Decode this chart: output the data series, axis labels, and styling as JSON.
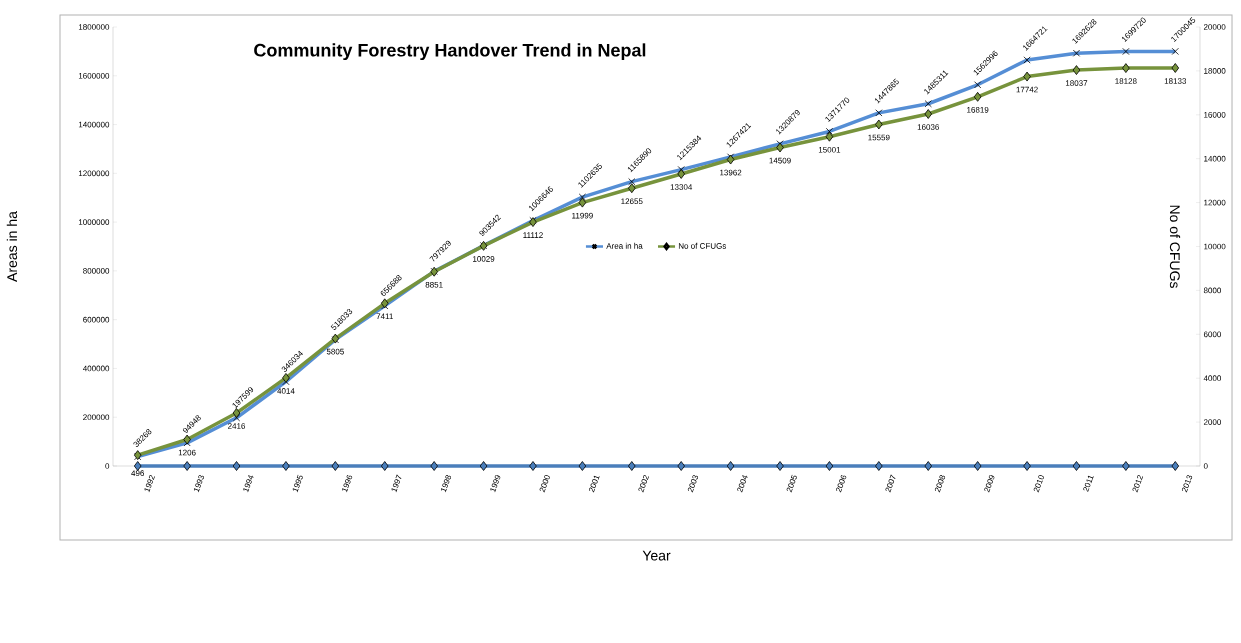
{
  "chart_data": {
    "type": "line",
    "title": "Community Forestry Handover Trend in Nepal",
    "xlabel": "Year",
    "ylabel": "Areas in ha",
    "y2label": "No of CFUGs",
    "categories": [
      "1992",
      "1993",
      "1994",
      "1995",
      "1996",
      "1997",
      "1998",
      "1999",
      "2000",
      "2001",
      "2002",
      "2003",
      "2004",
      "2005",
      "2006",
      "2007",
      "2008",
      "2009",
      "2010",
      "2011",
      "2012",
      "2013"
    ],
    "series": [
      {
        "name": "Area in ha",
        "color": "#558ed5",
        "marker": "cross",
        "axis": "y",
        "values": [
          38268,
          94948,
          197599,
          346034,
          518033,
          656688,
          797929,
          903542,
          1006646,
          1102635,
          1165890,
          1215384,
          1267421,
          1320879,
          1371770,
          1447865,
          1485311,
          1562996,
          1664721,
          1692628,
          1699720,
          1700045
        ]
      },
      {
        "name": "No of CFUGs",
        "color": "#77933c",
        "marker": "diamond",
        "axis": "y2",
        "values": [
          496,
          1206,
          2416,
          4014,
          5805,
          7411,
          8851,
          10029,
          11112,
          11999,
          12655,
          13304,
          13962,
          14509,
          15001,
          15559,
          16036,
          16819,
          17742,
          18037,
          18128,
          18133
        ]
      },
      {
        "color": "#4a7ebb",
        "marker": "diamond",
        "axis": "y",
        "data_labels": false,
        "values": [
          0,
          0,
          0,
          0,
          0,
          0,
          0,
          0,
          0,
          0,
          0,
          0,
          0,
          0,
          0,
          0,
          0,
          0,
          0,
          0,
          0,
          0
        ]
      }
    ],
    "ylim": [
      0,
      1800000
    ],
    "yticks": [
      0,
      200000,
      400000,
      600000,
      800000,
      1000000,
      1200000,
      1400000,
      1600000,
      1800000
    ],
    "y2lim": [
      0,
      20000
    ],
    "y2ticks": [
      0,
      2000,
      4000,
      6000,
      8000,
      10000,
      12000,
      14000,
      16000,
      18000,
      20000
    ],
    "data_labels": true,
    "legend": "center",
    "grid": false
  }
}
